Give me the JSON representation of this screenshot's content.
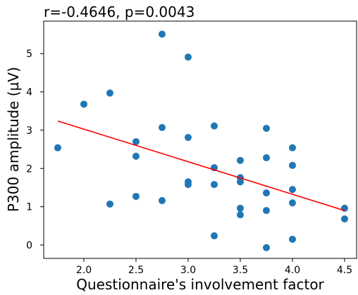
{
  "chart_data": {
    "type": "scatter",
    "title": "r=-0.4646, p=0.0043",
    "x_label": "Questionnaire's involvement factor",
    "y_label": "P300 amplitude (µV)",
    "x": [
      1.75,
      2.0,
      2.25,
      2.25,
      2.5,
      2.5,
      2.5,
      2.75,
      2.75,
      2.75,
      3.0,
      3.0,
      3.0,
      3.0,
      3.25,
      3.25,
      3.25,
      3.25,
      3.5,
      3.5,
      3.5,
      3.5,
      3.5,
      3.75,
      3.75,
      3.75,
      3.75,
      3.75,
      4.0,
      4.0,
      4.0,
      4.0,
      4.0,
      4.5,
      4.5
    ],
    "values": [
      2.54,
      3.68,
      3.97,
      1.07,
      2.7,
      2.32,
      1.27,
      5.51,
      3.07,
      1.16,
      4.91,
      2.81,
      1.65,
      1.58,
      3.11,
      2.02,
      1.58,
      0.24,
      2.21,
      1.76,
      1.65,
      0.96,
      0.79,
      3.05,
      2.28,
      1.36,
      0.9,
      -0.07,
      2.54,
      2.08,
      1.45,
      1.1,
      0.15,
      0.96,
      0.68
    ],
    "color": "#1f77b4",
    "fit": {
      "x": [
        1.75,
        4.5
      ],
      "values": [
        3.24,
        0.9
      ],
      "color": "#ff0000"
    },
    "xlim": [
      1.615,
      4.615
    ],
    "xticks": [
      {
        "value": 2,
        "label": "2.0"
      },
      2.5,
      {
        "value": 3,
        "label": "3.0"
      },
      3.5,
      {
        "value": 4,
        "label": "4.0"
      },
      4.5
    ],
    "ylim": [
      -0.35,
      5.85
    ],
    "yticks": [
      0,
      1,
      2,
      3,
      4,
      5
    ],
    "grid": false
  }
}
